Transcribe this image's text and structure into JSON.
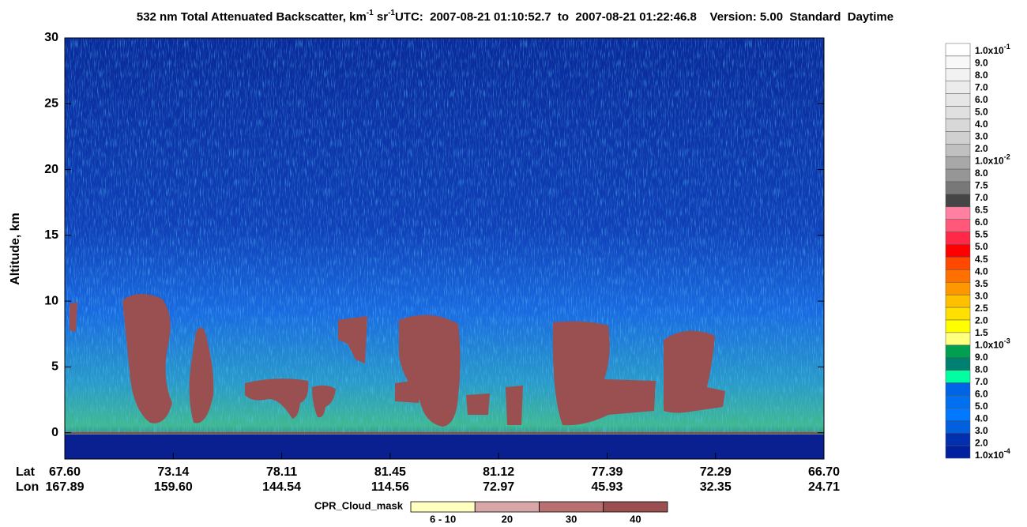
{
  "chart_data": {
    "type": "curtain",
    "title": {
      "main": "532 nm Total Attenuated Backscatter, km",
      "exp1": "-1",
      "unit2": " sr",
      "exp2": "-1",
      "info": "UTC:  2007-08-21 01:10:52.7  to  2007-08-21 01:22:46.8    Version: 5.00  Standard  Daytime"
    },
    "y_label": "Altitude, km",
    "ylim": [
      -2,
      30
    ],
    "yticks": [
      0,
      5,
      10,
      15,
      20,
      25,
      30
    ],
    "row_labels": [
      "Lat",
      "Lon"
    ],
    "lat_labels": [
      "67.60",
      "73.14",
      "78.11",
      "81.45",
      "81.12",
      "77.39",
      "72.29",
      "66.70"
    ],
    "lon_labels": [
      "167.89",
      "159.60",
      "144.54",
      "114.56",
      "72.97",
      "45.93",
      "32.35",
      "24.71"
    ],
    "colorbar": {
      "levels": [
        {
          "label": "1.0x10",
          "exp": "-1"
        },
        {
          "label": "9.0"
        },
        {
          "label": "8.0"
        },
        {
          "label": "7.0"
        },
        {
          "label": "6.0"
        },
        {
          "label": "5.0"
        },
        {
          "label": "4.0"
        },
        {
          "label": "3.0"
        },
        {
          "label": "2.0"
        },
        {
          "label": "1.0x10",
          "exp": "-2"
        },
        {
          "label": "8.0"
        },
        {
          "label": "7.5"
        },
        {
          "label": "7.0"
        },
        {
          "label": "6.5"
        },
        {
          "label": "6.0"
        },
        {
          "label": "5.5"
        },
        {
          "label": "5.0"
        },
        {
          "label": "4.5"
        },
        {
          "label": "4.0"
        },
        {
          "label": "3.5"
        },
        {
          "label": "3.0"
        },
        {
          "label": "2.5"
        },
        {
          "label": "2.0"
        },
        {
          "label": "1.5"
        },
        {
          "label": "1.0x10",
          "exp": "-3"
        },
        {
          "label": "9.0"
        },
        {
          "label": "8.0"
        },
        {
          "label": "7.0"
        },
        {
          "label": "6.0"
        },
        {
          "label": "5.0"
        },
        {
          "label": "4.0"
        },
        {
          "label": "3.0"
        },
        {
          "label": "2.0"
        },
        {
          "label": "1.0x10",
          "exp": "-4"
        }
      ],
      "colors": [
        "#ffffff",
        "#f8f8f8",
        "#f2f2f2",
        "#ececec",
        "#e6e6e6",
        "#e0e0e0",
        "#d8d8d8",
        "#d0d0d0",
        "#c0c0c0",
        "#a8a8a8",
        "#969696",
        "#787878",
        "#454545",
        "#ff80a0",
        "#ff5878",
        "#ff2848",
        "#ff0000",
        "#ff4800",
        "#ff7000",
        "#ff9800",
        "#ffc000",
        "#ffe000",
        "#ffff00",
        "#ffff80",
        "#00a050",
        "#008070",
        "#00ffa0",
        "#0064e6",
        "#0070f0",
        "#0078ff",
        "#0060e0",
        "#0030b0",
        "#0020a0"
      ]
    },
    "cpr_legend": {
      "title": "CPR_Cloud_mask",
      "labels": [
        "6 - 10",
        "20",
        "30",
        "40"
      ],
      "colors": [
        "#ffffc0",
        "#d8a8a8",
        "#b87070",
        "#9a5050"
      ]
    }
  }
}
